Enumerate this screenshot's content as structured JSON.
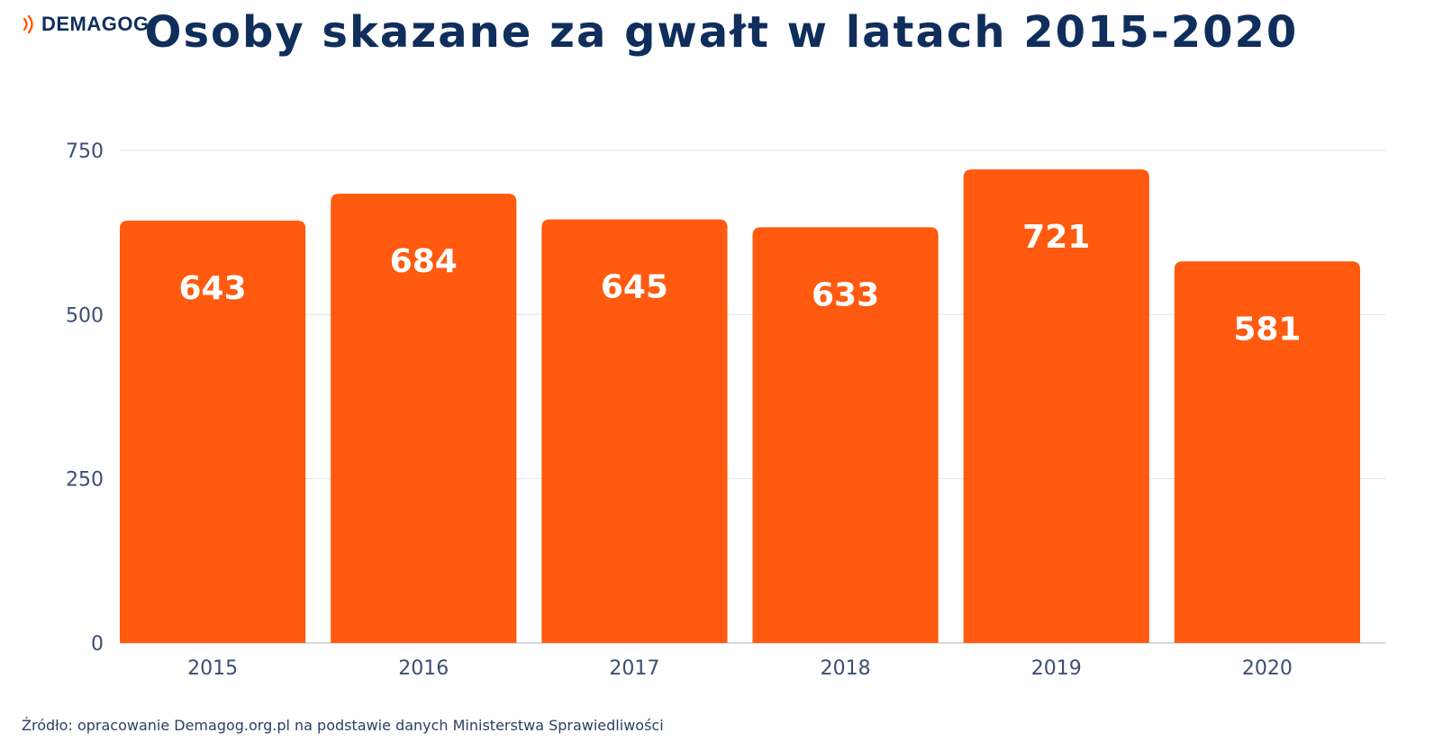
{
  "brand": {
    "name": "DEMAGOG",
    "color": "#0f2e5c",
    "accent": "#ff5a0f"
  },
  "source_text": "Źródło: opracowanie Demagog.org.pl na podstawie danych Ministerstwa Sprawiedliwości",
  "chart_data": {
    "type": "bar",
    "title": "Osoby skazane za gwałt w latach 2015-2020",
    "categories": [
      "2015",
      "2016",
      "2017",
      "2018",
      "2019",
      "2020"
    ],
    "values": [
      643,
      684,
      645,
      633,
      721,
      581
    ],
    "value_labels": [
      "643",
      "684",
      "645",
      "633",
      "721",
      "581"
    ],
    "yticks": [
      0,
      250,
      500,
      750
    ],
    "ylim": [
      0,
      750
    ],
    "xlabel": "",
    "ylabel": "",
    "grid": true,
    "bar_color": "#ff5a0f",
    "label_color": "#ffffff",
    "title_color": "#0f2e5c",
    "tick_color": "#3b4f73",
    "grid_color": "#e3e6ea"
  }
}
